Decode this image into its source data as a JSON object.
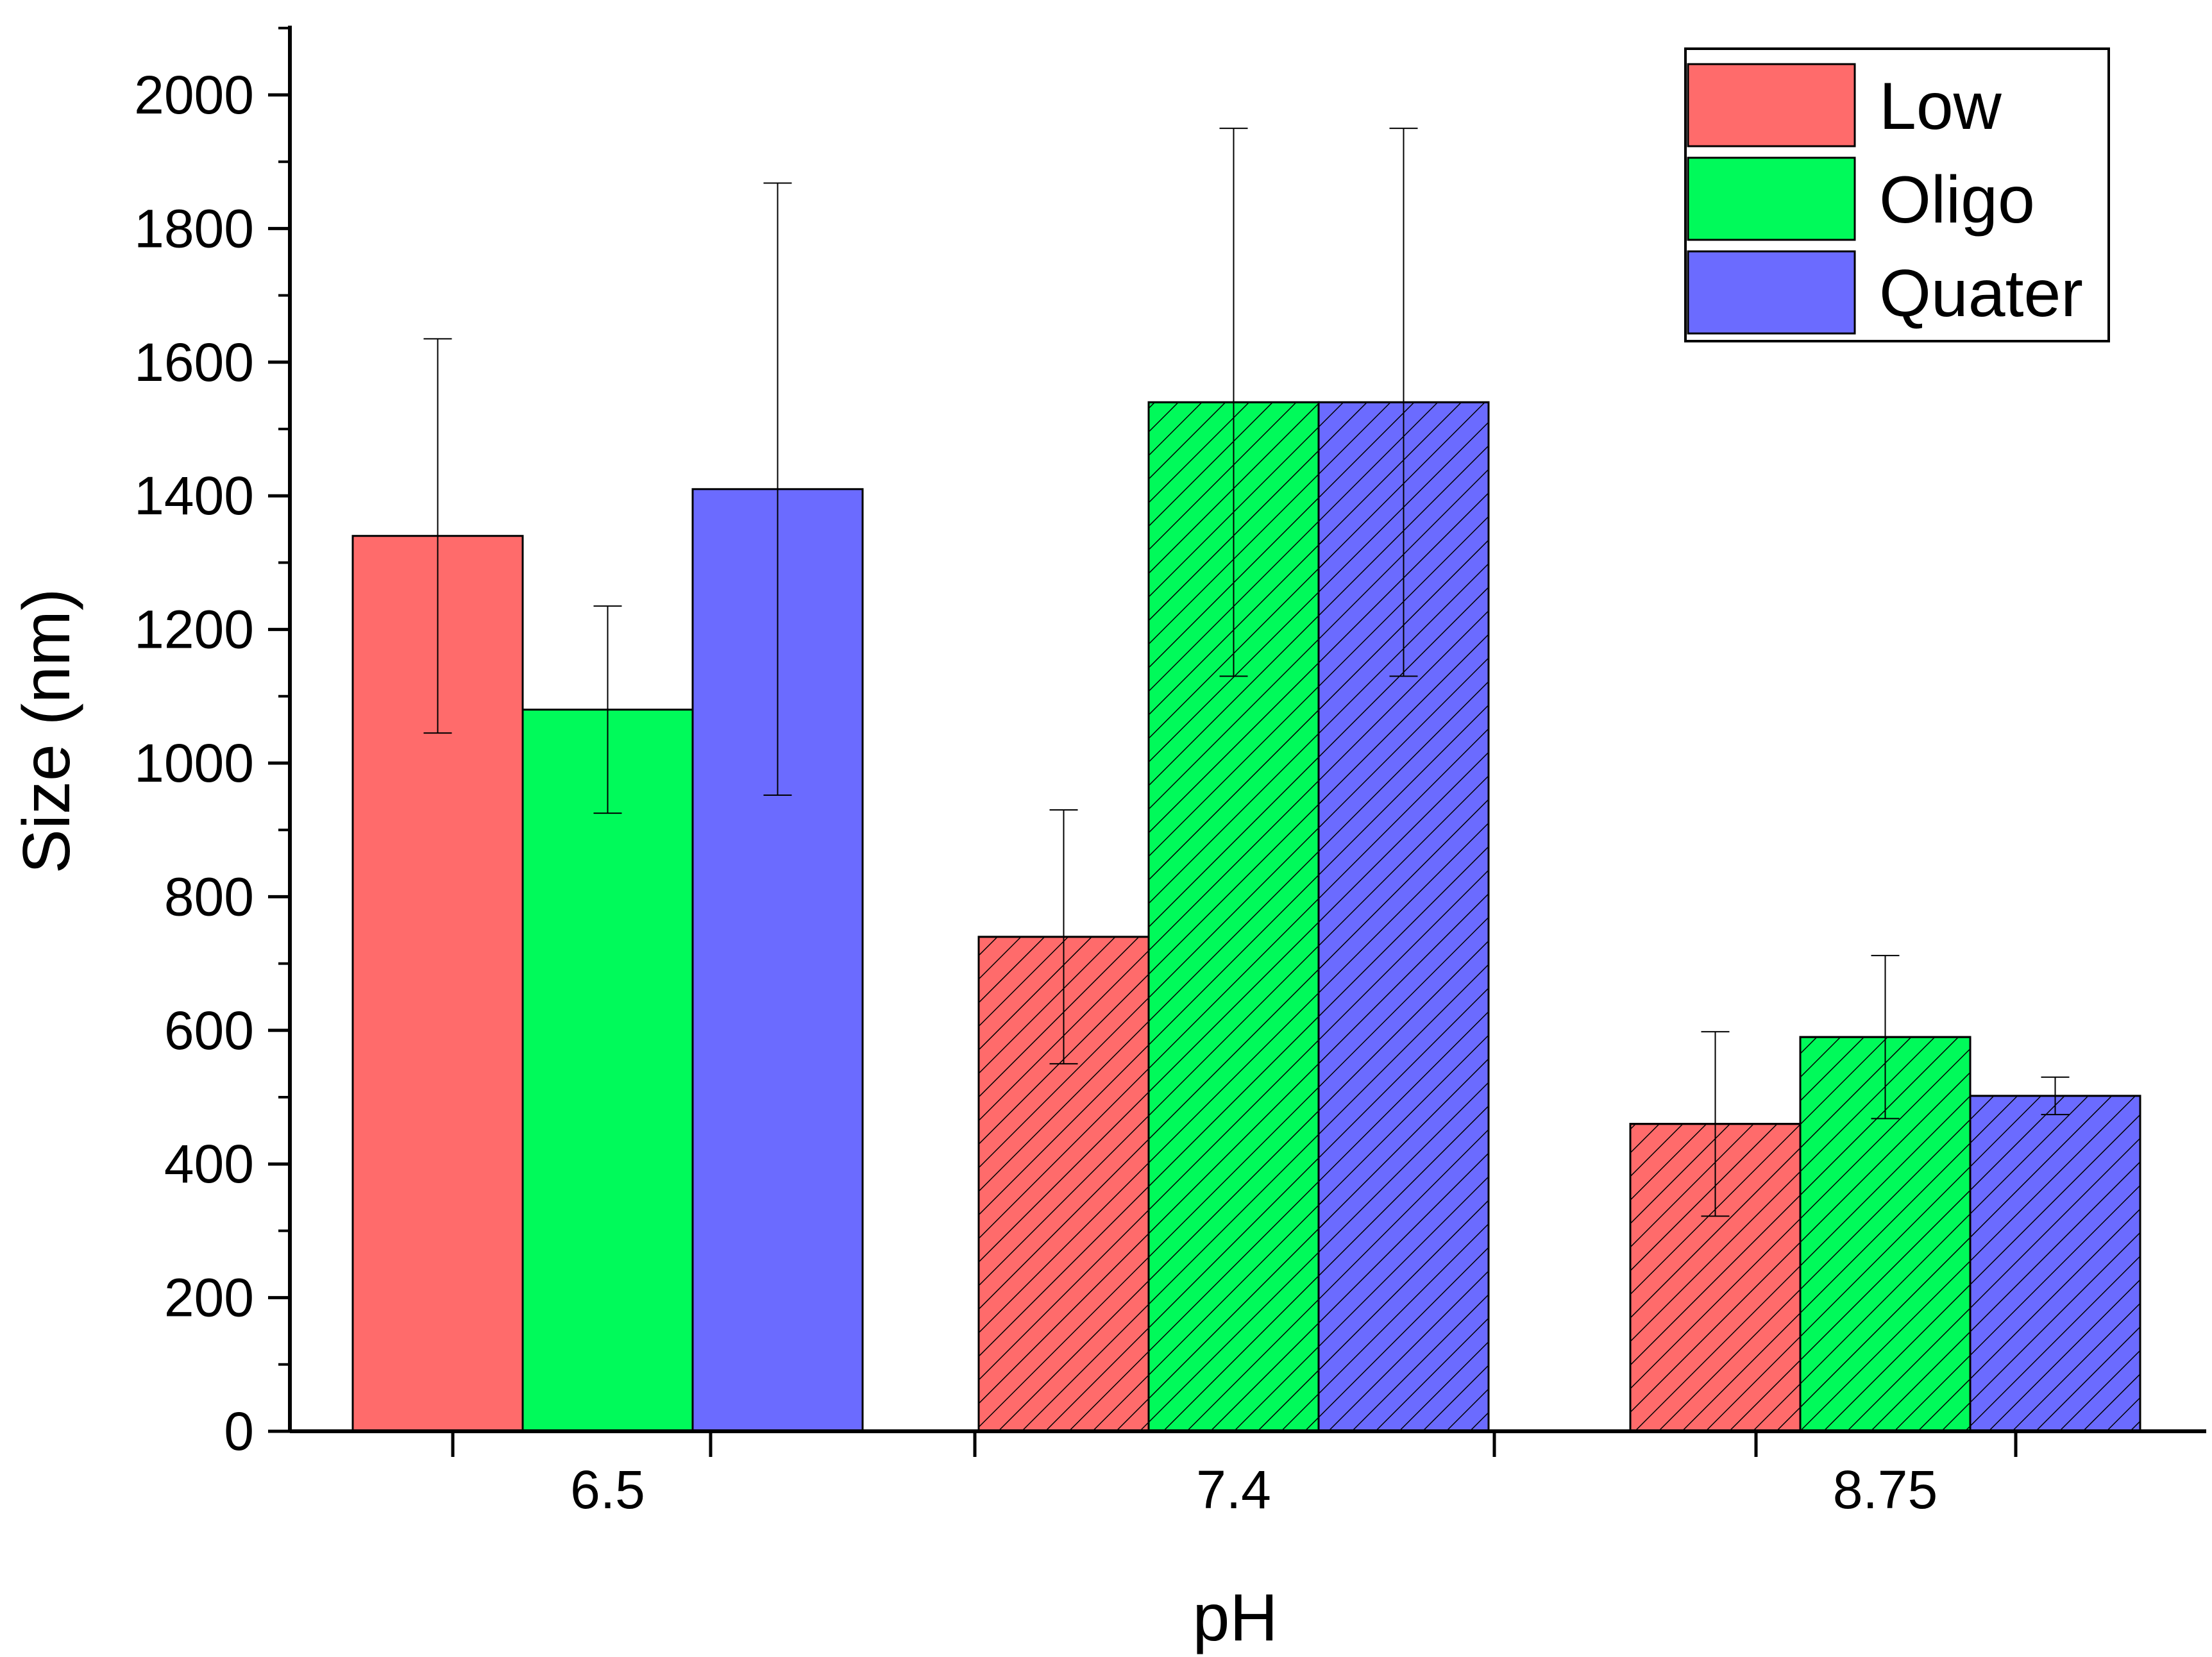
{
  "chart_data": {
    "type": "bar",
    "title": "",
    "xlabel": "pH",
    "ylabel": "Size (nm)",
    "categories": [
      "6.5",
      "7.4",
      "8.75"
    ],
    "ylim": [
      0,
      2100
    ],
    "yticks": [
      "0",
      "200",
      "400",
      "600",
      "800",
      "1000",
      "1200",
      "1400",
      "1600",
      "1800",
      "2000"
    ],
    "legend_position": "top-right",
    "grid": false,
    "series": [
      {
        "name": "Low",
        "color": "#ff6b6b",
        "values": [
          1340,
          740,
          460
        ],
        "errors": [
          295,
          190,
          138
        ]
      },
      {
        "name": "Oligo",
        "color": "#00fa5a",
        "values": [
          1080,
          1540,
          590
        ],
        "errors": [
          155,
          410,
          122
        ]
      },
      {
        "name": "Quater",
        "color": "#6b6bff",
        "values": [
          1410,
          1540,
          502
        ],
        "errors": [
          458,
          410,
          28
        ]
      }
    ],
    "hatched": [
      [
        false,
        true,
        true
      ],
      [
        false,
        true,
        true
      ],
      [
        false,
        true,
        true
      ]
    ]
  }
}
